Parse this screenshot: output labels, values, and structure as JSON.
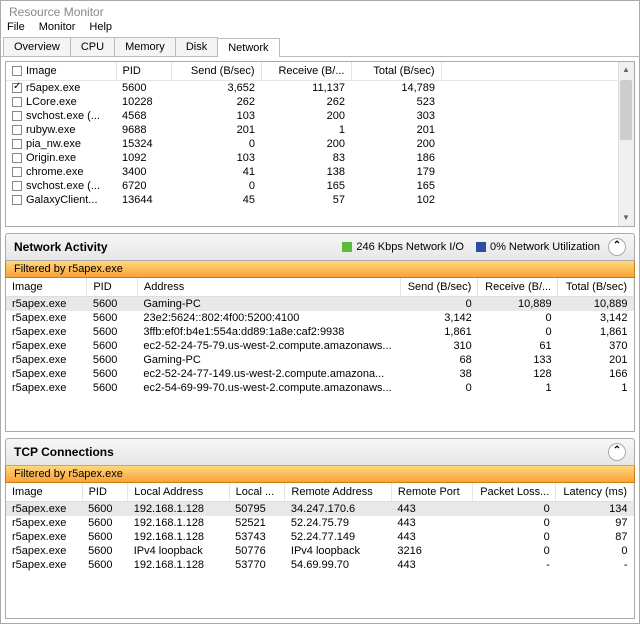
{
  "window": {
    "title": "Resource Monitor"
  },
  "menu": {
    "file": "File",
    "monitor": "Monitor",
    "help": "Help"
  },
  "tabs": {
    "overview": "Overview",
    "cpu": "CPU",
    "memory": "Memory",
    "disk": "Disk",
    "network": "Network"
  },
  "topGrid": {
    "cols": {
      "image": "Image",
      "pid": "PID",
      "send": "Send (B/sec)",
      "recv": "Receive (B/...",
      "total": "Total (B/sec)"
    },
    "rows": [
      {
        "checked": true,
        "image": "r5apex.exe",
        "pid": "5600",
        "send": "3,652",
        "recv": "11,137",
        "total": "14,789"
      },
      {
        "checked": false,
        "image": "LCore.exe",
        "pid": "10228",
        "send": "262",
        "recv": "262",
        "total": "523"
      },
      {
        "checked": false,
        "image": "svchost.exe (...",
        "pid": "4568",
        "send": "103",
        "recv": "200",
        "total": "303"
      },
      {
        "checked": false,
        "image": "rubyw.exe",
        "pid": "9688",
        "send": "201",
        "recv": "1",
        "total": "201"
      },
      {
        "checked": false,
        "image": "pia_nw.exe",
        "pid": "15324",
        "send": "0",
        "recv": "200",
        "total": "200"
      },
      {
        "checked": false,
        "image": "Origin.exe",
        "pid": "1092",
        "send": "103",
        "recv": "83",
        "total": "186"
      },
      {
        "checked": false,
        "image": "chrome.exe",
        "pid": "3400",
        "send": "41",
        "recv": "138",
        "total": "179"
      },
      {
        "checked": false,
        "image": "svchost.exe (...",
        "pid": "6720",
        "send": "0",
        "recv": "165",
        "total": "165"
      },
      {
        "checked": false,
        "image": "GalaxyClient...",
        "pid": "13644",
        "send": "45",
        "recv": "57",
        "total": "102"
      }
    ]
  },
  "netActivity": {
    "title": "Network Activity",
    "ioLabel": "246 Kbps Network I/O",
    "utilLabel": "0% Network Utilization",
    "filter": "Filtered by r5apex.exe",
    "cols": {
      "image": "Image",
      "pid": "PID",
      "address": "Address",
      "send": "Send (B/sec)",
      "recv": "Receive (B/...",
      "total": "Total (B/sec)"
    },
    "rows": [
      {
        "image": "r5apex.exe",
        "pid": "5600",
        "address": "Gaming-PC",
        "send": "0",
        "recv": "10,889",
        "total": "10,889",
        "sel": true
      },
      {
        "image": "r5apex.exe",
        "pid": "5600",
        "address": "23e2:5624::802:4f00:5200:4100",
        "send": "3,142",
        "recv": "0",
        "total": "3,142"
      },
      {
        "image": "r5apex.exe",
        "pid": "5600",
        "address": "3ffb:ef0f:b4e1:554a:dd89:1a8e:caf2:9938",
        "send": "1,861",
        "recv": "0",
        "total": "1,861"
      },
      {
        "image": "r5apex.exe",
        "pid": "5600",
        "address": "ec2-52-24-75-79.us-west-2.compute.amazonaws...",
        "send": "310",
        "recv": "61",
        "total": "370"
      },
      {
        "image": "r5apex.exe",
        "pid": "5600",
        "address": "Gaming-PC",
        "send": "68",
        "recv": "133",
        "total": "201"
      },
      {
        "image": "r5apex.exe",
        "pid": "5600",
        "address": "ec2-52-24-77-149.us-west-2.compute.amazona...",
        "send": "38",
        "recv": "128",
        "total": "166"
      },
      {
        "image": "r5apex.exe",
        "pid": "5600",
        "address": "ec2-54-69-99-70.us-west-2.compute.amazonaws...",
        "send": "0",
        "recv": "1",
        "total": "1"
      }
    ]
  },
  "tcp": {
    "title": "TCP Connections",
    "filter": "Filtered by r5apex.exe",
    "cols": {
      "image": "Image",
      "pid": "PID",
      "laddr": "Local Address",
      "lport": "Local ...",
      "raddr": "Remote Address",
      "rport": "Remote Port",
      "loss": "Packet Loss...",
      "latency": "Latency (ms)"
    },
    "rows": [
      {
        "image": "r5apex.exe",
        "pid": "5600",
        "laddr": "192.168.1.128",
        "lport": "50795",
        "raddr": "34.247.170.6",
        "rport": "443",
        "loss": "0",
        "latency": "134",
        "sel": true
      },
      {
        "image": "r5apex.exe",
        "pid": "5600",
        "laddr": "192.168.1.128",
        "lport": "52521",
        "raddr": "52.24.75.79",
        "rport": "443",
        "loss": "0",
        "latency": "97"
      },
      {
        "image": "r5apex.exe",
        "pid": "5600",
        "laddr": "192.168.1.128",
        "lport": "53743",
        "raddr": "52.24.77.149",
        "rport": "443",
        "loss": "0",
        "latency": "87"
      },
      {
        "image": "r5apex.exe",
        "pid": "5600",
        "laddr": "IPv4 loopback",
        "lport": "50776",
        "raddr": "IPv4 loopback",
        "rport": "3216",
        "loss": "0",
        "latency": "0"
      },
      {
        "image": "r5apex.exe",
        "pid": "5600",
        "laddr": "192.168.1.128",
        "lport": "53770",
        "raddr": "54.69.99.70",
        "rport": "443",
        "loss": "-",
        "latency": "-"
      }
    ]
  },
  "colors": {
    "filterBarGradientTop": "#ffd77a",
    "filterBarGradientBottom": "#f9a23a",
    "filterBarBorder": "#c77c14",
    "legendGreen": "#5dbb3a",
    "legendBlue": "#2a4ea0",
    "border": "#aaaaaa",
    "selectedRow": "#e8e8e8"
  }
}
